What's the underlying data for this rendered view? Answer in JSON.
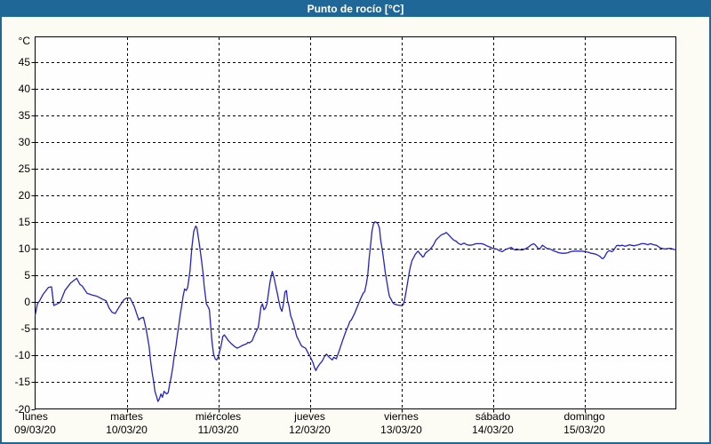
{
  "colors": {
    "header_bg": "#1f6796",
    "page_border": "#1f6796",
    "background": "#fcfcf4",
    "plot_bg": "#fefefe",
    "grid": "#000000",
    "axis": "#000000",
    "axis_text": "#000000",
    "title_text": "#ffffff",
    "line": "#2222cc"
  },
  "chart_data": {
    "type": "line",
    "title": "Punto de rocío [°C]",
    "y_unit": "°C",
    "ylim": [
      -20,
      49.8
    ],
    "y_ticks": [
      45,
      40,
      35,
      30,
      25,
      20,
      15,
      10,
      5,
      0,
      -5,
      -10,
      -15,
      -20
    ],
    "x_unit": "hours_since_monday_00h",
    "xlim": [
      0,
      168
    ],
    "grid": "dashed",
    "legend": "none",
    "x_ticks": [
      {
        "hour": 0,
        "day": "lunes",
        "date": "09/03/20"
      },
      {
        "hour": 24,
        "day": "martes",
        "date": "10/03/20"
      },
      {
        "hour": 48,
        "day": "miércoles",
        "date": "11/03/20"
      },
      {
        "hour": 72,
        "day": "jueves",
        "date": "12/03/20"
      },
      {
        "hour": 96,
        "day": "viernes",
        "date": "13/03/20"
      },
      {
        "hour": 120,
        "day": "sábado",
        "date": "14/03/20"
      },
      {
        "hour": 144,
        "day": "domingo",
        "date": "15/03/20"
      }
    ],
    "series": [
      {
        "name": "punto_de_rocio",
        "color": "#2222cc",
        "points": [
          [
            0,
            -2.5
          ],
          [
            0.6,
            -0.3
          ],
          [
            1.2,
            0.3
          ],
          [
            2.1,
            1.5
          ],
          [
            3.5,
            2.8
          ],
          [
            4.3,
            2.9
          ],
          [
            4.9,
            -0.6
          ],
          [
            5.8,
            -0.3
          ],
          [
            6.6,
            0
          ],
          [
            7.8,
            2.2
          ],
          [
            9.3,
            3.6
          ],
          [
            10.9,
            4.5
          ],
          [
            11.7,
            3.4
          ],
          [
            12.4,
            3
          ],
          [
            13.6,
            1.7
          ],
          [
            14.8,
            1.4
          ],
          [
            16.3,
            1.1
          ],
          [
            17.9,
            0.5
          ],
          [
            18.6,
            0.3
          ],
          [
            19.4,
            -1.1
          ],
          [
            20.2,
            -1.9
          ],
          [
            21,
            -2.1
          ],
          [
            22.1,
            -0.8
          ],
          [
            23.3,
            0.5
          ],
          [
            24,
            0.8
          ],
          [
            24.9,
            0.8
          ],
          [
            26,
            -0.8
          ],
          [
            26.8,
            -2.5
          ],
          [
            27.2,
            -3.3
          ],
          [
            27.6,
            -3
          ],
          [
            28.4,
            -2.8
          ],
          [
            29.1,
            -5
          ],
          [
            29.9,
            -8.3
          ],
          [
            30.3,
            -11.1
          ],
          [
            30.7,
            -13.3
          ],
          [
            31.1,
            -15
          ],
          [
            31.4,
            -16.7
          ],
          [
            31.9,
            -17.8
          ],
          [
            32.2,
            -18.6
          ],
          [
            32.6,
            -18.1
          ],
          [
            33,
            -17.2
          ],
          [
            33.4,
            -17.8
          ],
          [
            33.8,
            -16.7
          ],
          [
            34.5,
            -17.2
          ],
          [
            34.9,
            -16.9
          ],
          [
            35.3,
            -15.3
          ],
          [
            35.7,
            -13.9
          ],
          [
            36.1,
            -12.2
          ],
          [
            36.5,
            -10
          ],
          [
            36.9,
            -8.3
          ],
          [
            37.3,
            -6.1
          ],
          [
            37.7,
            -4.2
          ],
          [
            38,
            -2.5
          ],
          [
            38.4,
            -0.8
          ],
          [
            38.8,
            1.1
          ],
          [
            39.2,
            2.5
          ],
          [
            39.6,
            2.2
          ],
          [
            40,
            2.8
          ],
          [
            40.6,
            5.8
          ],
          [
            41.1,
            10.3
          ],
          [
            41.6,
            13.3
          ],
          [
            42.1,
            14.3
          ],
          [
            42.4,
            14
          ],
          [
            42.9,
            11.7
          ],
          [
            43.3,
            9.7
          ],
          [
            43.7,
            7.5
          ],
          [
            44.1,
            5
          ],
          [
            44.3,
            3.3
          ],
          [
            44.9,
            -0.3
          ],
          [
            45.3,
            -0.8
          ],
          [
            45.7,
            -1.4
          ],
          [
            46.1,
            -5
          ],
          [
            46.4,
            -7.5
          ],
          [
            46.8,
            -9.7
          ],
          [
            47.2,
            -10.6
          ],
          [
            47.6,
            -10.8
          ],
          [
            48,
            -10.3
          ],
          [
            48.8,
            -8
          ],
          [
            49.2,
            -6.4
          ],
          [
            49.6,
            -6.1
          ],
          [
            49.9,
            -6.4
          ],
          [
            50.7,
            -7.2
          ],
          [
            51.5,
            -7.8
          ],
          [
            52.3,
            -8.3
          ],
          [
            53,
            -8.6
          ],
          [
            53.8,
            -8.3
          ],
          [
            54.6,
            -8
          ],
          [
            55.4,
            -7.8
          ],
          [
            55.8,
            -7.5
          ],
          [
            56.2,
            -7.6
          ],
          [
            56.9,
            -7.2
          ],
          [
            57.7,
            -5.8
          ],
          [
            58.5,
            -4.7
          ],
          [
            59.2,
            -0.9
          ],
          [
            59.6,
            -0.3
          ],
          [
            60,
            -1.4
          ],
          [
            60.4,
            -1.1
          ],
          [
            60.8,
            -0.3
          ],
          [
            61.2,
            1.9
          ],
          [
            61.6,
            3.9
          ],
          [
            62.2,
            5.8
          ],
          [
            62.5,
            5
          ],
          [
            62.7,
            4.4
          ],
          [
            63.1,
            3
          ],
          [
            63.5,
            1.7
          ],
          [
            63.9,
            0.3
          ],
          [
            64.3,
            -1.1
          ],
          [
            64.7,
            -1.7
          ],
          [
            65.1,
            -0.3
          ],
          [
            65.5,
            1.9
          ],
          [
            65.9,
            2.2
          ],
          [
            66.2,
            0.3
          ],
          [
            66.6,
            -0.8
          ],
          [
            67,
            -2.5
          ],
          [
            67.4,
            -3.3
          ],
          [
            67.8,
            -4.2
          ],
          [
            68.2,
            -5.3
          ],
          [
            68.6,
            -6.4
          ],
          [
            69.4,
            -7.5
          ],
          [
            69.7,
            -8
          ],
          [
            70.1,
            -8.3
          ],
          [
            70.9,
            -8.6
          ],
          [
            71.7,
            -9.7
          ],
          [
            72,
            -10
          ],
          [
            72.9,
            -11.4
          ],
          [
            73.2,
            -12.2
          ],
          [
            73.6,
            -12.8
          ],
          [
            74,
            -12.2
          ],
          [
            74.8,
            -11.4
          ],
          [
            75.2,
            -11.1
          ],
          [
            76,
            -10
          ],
          [
            76.4,
            -9.7
          ],
          [
            76.7,
            -10
          ],
          [
            77.1,
            -10.3
          ],
          [
            77.9,
            -10.8
          ],
          [
            78.3,
            -10.3
          ],
          [
            79,
            -10.6
          ],
          [
            79.8,
            -8.9
          ],
          [
            80.6,
            -7.2
          ],
          [
            81.4,
            -5.6
          ],
          [
            82.2,
            -4.2
          ],
          [
            82.5,
            -3.6
          ],
          [
            82.9,
            -3.3
          ],
          [
            83.7,
            -2.2
          ],
          [
            84.5,
            -0.8
          ],
          [
            85.3,
            0.6
          ],
          [
            86,
            1.7
          ],
          [
            86.4,
            2
          ],
          [
            86.8,
            3.3
          ],
          [
            87.2,
            5
          ],
          [
            87.6,
            8.3
          ],
          [
            88,
            11.1
          ],
          [
            88.3,
            13.3
          ],
          [
            88.7,
            14.7
          ],
          [
            89.1,
            15.1
          ],
          [
            89.5,
            15
          ],
          [
            89.9,
            14.7
          ],
          [
            90.3,
            13.9
          ],
          [
            90.6,
            11.7
          ],
          [
            91,
            10
          ],
          [
            91.4,
            7.8
          ],
          [
            91.8,
            5.6
          ],
          [
            92.2,
            3.9
          ],
          [
            92.6,
            2.2
          ],
          [
            92.9,
            1.1
          ],
          [
            93.3,
            0.6
          ],
          [
            93.7,
            0
          ],
          [
            94.1,
            -0.3
          ],
          [
            94.9,
            -0.5
          ],
          [
            95.7,
            -0.6
          ],
          [
            96,
            -0.6
          ],
          [
            96.5,
            -0.5
          ],
          [
            96.9,
            0.6
          ],
          [
            97.3,
            2.2
          ],
          [
            97.7,
            3.9
          ],
          [
            98.1,
            5.6
          ],
          [
            98.4,
            6.7
          ],
          [
            98.8,
            7.8
          ],
          [
            99.2,
            8.3
          ],
          [
            99.6,
            8.9
          ],
          [
            100,
            9.3
          ],
          [
            100.4,
            9.6
          ],
          [
            100.8,
            9.2
          ],
          [
            101.2,
            8.9
          ],
          [
            101.6,
            8.5
          ],
          [
            101.9,
            8.6
          ],
          [
            102.3,
            9.2
          ],
          [
            103.1,
            9.7
          ],
          [
            103.5,
            9.9
          ],
          [
            104.3,
            10.6
          ],
          [
            104.7,
            11.1
          ],
          [
            105.1,
            11.7
          ],
          [
            105.8,
            12.2
          ],
          [
            106.6,
            12.7
          ],
          [
            107.4,
            12.9
          ],
          [
            107.8,
            13.1
          ],
          [
            108.2,
            12.8
          ],
          [
            109,
            12.2
          ],
          [
            109.7,
            11.7
          ],
          [
            110.5,
            11.4
          ],
          [
            110.9,
            11.1
          ],
          [
            111.7,
            10.8
          ],
          [
            112.1,
            11
          ],
          [
            112.5,
            11.1
          ],
          [
            113.2,
            10.8
          ],
          [
            114,
            10.7
          ],
          [
            114.8,
            10.8
          ],
          [
            115.6,
            11
          ],
          [
            116.4,
            11
          ],
          [
            117.1,
            11
          ],
          [
            117.9,
            10.8
          ],
          [
            118.7,
            10.5
          ],
          [
            119.5,
            10.3
          ],
          [
            120,
            10.1
          ],
          [
            121,
            10
          ],
          [
            121.7,
            9.7
          ],
          [
            122.5,
            9.5
          ],
          [
            123.3,
            9.9
          ],
          [
            124.1,
            10.1
          ],
          [
            124.9,
            10.3
          ],
          [
            125.3,
            10
          ],
          [
            126,
            9.8
          ],
          [
            126.8,
            9.9
          ],
          [
            127.6,
            9.8
          ],
          [
            128.4,
            10
          ],
          [
            129.2,
            10.3
          ],
          [
            129.9,
            10.7
          ],
          [
            130.7,
            11
          ],
          [
            131.1,
            10.8
          ],
          [
            131.9,
            10.1
          ],
          [
            132.3,
            10
          ],
          [
            133,
            10.7
          ],
          [
            133.4,
            10.5
          ],
          [
            134.2,
            10.1
          ],
          [
            135,
            10
          ],
          [
            135.8,
            9.7
          ],
          [
            136.6,
            9.5
          ],
          [
            137.3,
            9.3
          ],
          [
            138.1,
            9.2
          ],
          [
            138.9,
            9.2
          ],
          [
            139.7,
            9.3
          ],
          [
            140.4,
            9.5
          ],
          [
            141.2,
            9.6
          ],
          [
            142.8,
            9.6
          ],
          [
            143.5,
            9.6
          ],
          [
            144,
            9.5
          ],
          [
            145,
            9.4
          ],
          [
            145.8,
            9.2
          ],
          [
            146.6,
            9.1
          ],
          [
            147.4,
            8.9
          ],
          [
            148.1,
            8.6
          ],
          [
            148.5,
            8.3
          ],
          [
            148.9,
            8.2
          ],
          [
            149.3,
            8.5
          ],
          [
            149.7,
            9.1
          ],
          [
            150.1,
            9.5
          ],
          [
            150.5,
            9.7
          ],
          [
            150.9,
            9.6
          ],
          [
            151.2,
            9.5
          ],
          [
            151.6,
            9.7
          ],
          [
            152.4,
            10.6
          ],
          [
            152.8,
            10.7
          ],
          [
            153.2,
            10.6
          ],
          [
            154,
            10.7
          ],
          [
            154.7,
            10.5
          ],
          [
            155.1,
            10.6
          ],
          [
            155.9,
            10.8
          ],
          [
            156.3,
            10.7
          ],
          [
            157.1,
            10.6
          ],
          [
            157.5,
            10.7
          ],
          [
            158.2,
            10.8
          ],
          [
            159,
            11
          ],
          [
            159.8,
            11
          ],
          [
            160.6,
            10.8
          ],
          [
            161.4,
            11
          ],
          [
            162.1,
            10.8
          ],
          [
            162.9,
            10.7
          ],
          [
            163.7,
            10.3
          ],
          [
            164.4,
            10.1
          ],
          [
            165.2,
            10
          ],
          [
            166,
            10.1
          ],
          [
            166.8,
            10.1
          ],
          [
            167.5,
            9.9
          ],
          [
            168,
            9.9
          ]
        ]
      }
    ]
  }
}
